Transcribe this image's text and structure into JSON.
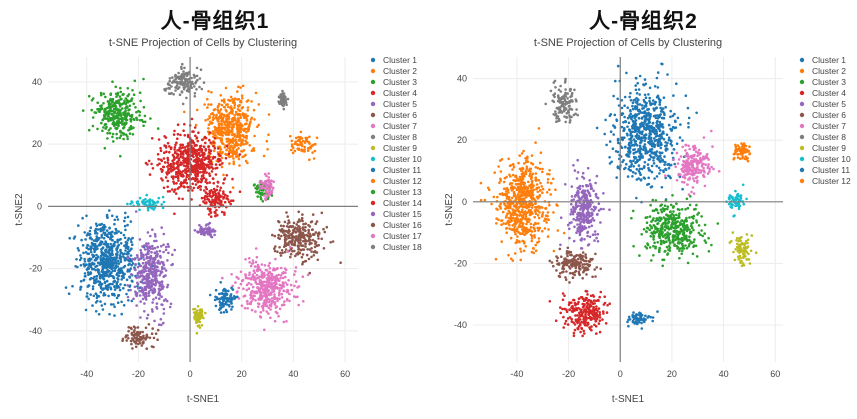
{
  "charts": [
    {
      "heading": "人-骨组织1",
      "chart_data": {
        "type": "scatter",
        "title": "t-SNE Projection of Cells by Clustering",
        "xlabel": "t-SNE1",
        "ylabel": "t-SNE2",
        "xlim": [
          -55,
          65
        ],
        "ylim": [
          -50,
          48
        ],
        "xticks": [
          -40,
          -20,
          0,
          20,
          40,
          60
        ],
        "yticks": [
          -40,
          -20,
          0,
          20,
          40
        ],
        "legend": "right",
        "series": [
          {
            "name": "Cluster 1",
            "color": "#1f77b4",
            "center": [
              -32,
              -18
            ],
            "spread": [
              10,
              12
            ]
          },
          {
            "name": "Cluster 2",
            "color": "#ff7f0e",
            "center": [
              16,
              25
            ],
            "spread": [
              9,
              10
            ]
          },
          {
            "name": "Cluster 3",
            "color": "#2ca02c",
            "center": [
              -28,
              30
            ],
            "spread": [
              8,
              7
            ]
          },
          {
            "name": "Cluster 4",
            "color": "#d62728",
            "center": [
              0,
              14
            ],
            "spread": [
              11,
              9
            ]
          },
          {
            "name": "Cluster 5",
            "color": "#9467bd",
            "center": [
              -15,
              -22
            ],
            "spread": [
              6,
              11
            ]
          },
          {
            "name": "Cluster 6",
            "color": "#8c564b",
            "center": [
              42,
              -10
            ],
            "spread": [
              8,
              6
            ]
          },
          {
            "name": "Cluster 7",
            "color": "#e377c2",
            "center": [
              30,
              -26
            ],
            "spread": [
              9,
              8
            ]
          },
          {
            "name": "Cluster 8",
            "color": "#7f7f7f",
            "center": [
              -3,
              40
            ],
            "spread": [
              6,
              4
            ]
          },
          {
            "name": "Cluster 9",
            "color": "#bcbd22",
            "center": [
              3,
              -35
            ],
            "spread": [
              2,
              3
            ]
          },
          {
            "name": "Cluster 10",
            "color": "#17becf",
            "center": [
              -16,
              1
            ],
            "spread": [
              6,
              2
            ]
          },
          {
            "name": "Cluster 11",
            "color": "#1f77b4",
            "center": [
              14,
              -30
            ],
            "spread": [
              4,
              4
            ]
          },
          {
            "name": "Cluster 12",
            "color": "#ff7f0e",
            "center": [
              44,
              20
            ],
            "spread": [
              4,
              3
            ]
          },
          {
            "name": "Cluster 13",
            "color": "#2ca02c",
            "center": [
              28,
              5
            ],
            "spread": [
              3,
              3
            ]
          },
          {
            "name": "Cluster 14",
            "color": "#d62728",
            "center": [
              10,
              2
            ],
            "spread": [
              5,
              4
            ]
          },
          {
            "name": "Cluster 15",
            "color": "#9467bd",
            "center": [
              6,
              -8
            ],
            "spread": [
              3,
              2
            ]
          },
          {
            "name": "Cluster 16",
            "color": "#8c564b",
            "center": [
              -20,
              -42
            ],
            "spread": [
              5,
              3
            ]
          },
          {
            "name": "Cluster 17",
            "color": "#e377c2",
            "center": [
              30,
              6
            ],
            "spread": [
              3,
              3
            ]
          },
          {
            "name": "Cluster 18",
            "color": "#7f7f7f",
            "center": [
              36,
              34
            ],
            "spread": [
              1.5,
              2
            ]
          }
        ]
      }
    },
    {
      "heading": "人-骨组织2",
      "chart_data": {
        "type": "scatter",
        "title": "t-SNE Projection of Cells by Clustering",
        "xlabel": "t-SNE1",
        "ylabel": "t-SNE2",
        "xlim": [
          -57,
          63
        ],
        "ylim": [
          -52,
          47
        ],
        "xticks": [
          -40,
          -20,
          0,
          20,
          40,
          60
        ],
        "yticks": [
          -40,
          -20,
          0,
          20,
          40
        ],
        "legend": "right",
        "series": [
          {
            "name": "Cluster 1",
            "color": "#1f77b4",
            "center": [
              10,
              22
            ],
            "spread": [
              11,
              14
            ]
          },
          {
            "name": "Cluster 2",
            "color": "#ff7f0e",
            "center": [
              -38,
              0
            ],
            "spread": [
              9,
              13
            ]
          },
          {
            "name": "Cluster 3",
            "color": "#2ca02c",
            "center": [
              20,
              -9
            ],
            "spread": [
              10,
              7
            ]
          },
          {
            "name": "Cluster 4",
            "color": "#d62728",
            "center": [
              -14,
              -36
            ],
            "spread": [
              7,
              6
            ]
          },
          {
            "name": "Cluster 5",
            "color": "#9467bd",
            "center": [
              -14,
              -2
            ],
            "spread": [
              5,
              10
            ]
          },
          {
            "name": "Cluster 6",
            "color": "#8c564b",
            "center": [
              -18,
              -20
            ],
            "spread": [
              7,
              4
            ]
          },
          {
            "name": "Cluster 7",
            "color": "#e377c2",
            "center": [
              28,
              12
            ],
            "spread": [
              6,
              6
            ]
          },
          {
            "name": "Cluster 8",
            "color": "#7f7f7f",
            "center": [
              -22,
              32
            ],
            "spread": [
              4,
              6
            ]
          },
          {
            "name": "Cluster 9",
            "color": "#bcbd22",
            "center": [
              47,
              -16
            ],
            "spread": [
              3,
              5
            ]
          },
          {
            "name": "Cluster 10",
            "color": "#17becf",
            "center": [
              45,
              0
            ],
            "spread": [
              3,
              3
            ]
          },
          {
            "name": "Cluster 11",
            "color": "#1f77b4",
            "center": [
              8,
              -38
            ],
            "spread": [
              5,
              2
            ]
          },
          {
            "name": "Cluster 12",
            "color": "#ff7f0e",
            "center": [
              47,
              16
            ],
            "spread": [
              3,
              3
            ]
          }
        ]
      }
    }
  ]
}
